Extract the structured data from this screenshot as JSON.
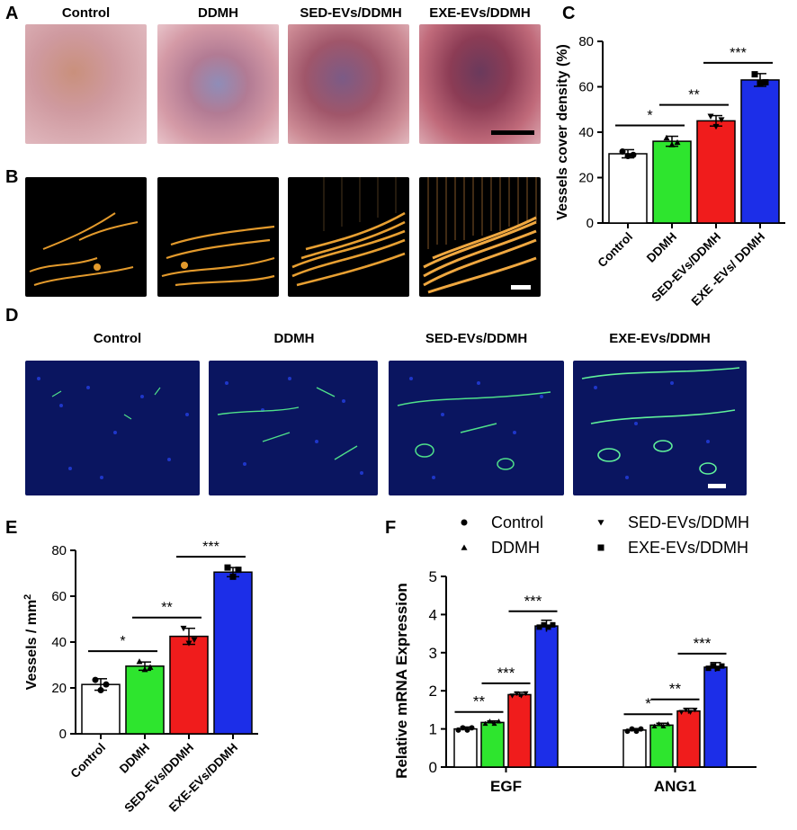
{
  "panels": {
    "A": "A",
    "B": "B",
    "C": "C",
    "D": "D",
    "E": "E",
    "F": "F"
  },
  "image_labels_top": [
    "Control",
    "DDMH",
    "SED-EVs/DDMH",
    "EXE-EVs/DDMH"
  ],
  "image_labels_d": [
    "Control",
    "DDMH",
    "SED-EVs/DDMH",
    "EXE-EVs/DDMH"
  ],
  "colors": {
    "control": "#ffffff",
    "ddmh": "#2ee52e",
    "sed": "#f01c1c",
    "exe": "#1c2ee8"
  },
  "chart_data": [
    {
      "id": "C",
      "type": "bar",
      "categories": [
        "Control",
        "DDMH",
        "SED-EVs/DDMH",
        "EXE -EVs/ DDMH"
      ],
      "values": [
        30.5,
        36,
        45,
        63
      ],
      "errors": [
        1.8,
        2.2,
        2.3,
        2.8
      ],
      "points": [
        [
          31.5,
          29.5,
          30
        ],
        [
          37.5,
          34.5,
          35.5
        ],
        [
          47,
          42.5,
          45.5
        ],
        [
          65.5,
          61.5,
          62
        ]
      ],
      "ylabel": "Vessels cover density (%)",
      "xlabel": "",
      "ylim": [
        0,
        80
      ],
      "yticks": [
        0,
        20,
        40,
        60,
        80
      ],
      "significance": [
        {
          "from": 0,
          "to": 1,
          "label": "*"
        },
        {
          "from": 1,
          "to": 2,
          "label": "**"
        },
        {
          "from": 2,
          "to": 3,
          "label": "***"
        }
      ]
    },
    {
      "id": "E",
      "type": "bar",
      "categories": [
        "Control",
        "DDMH",
        "SED-EVs/DDMH",
        "EXE-EVs/DDMH"
      ],
      "values": [
        21.5,
        29.5,
        42.5,
        70.5
      ],
      "errors": [
        2.5,
        1.8,
        3.5,
        2
      ],
      "points": [
        [
          23.5,
          19,
          21.5
        ],
        [
          31.5,
          28,
          29
        ],
        [
          46,
          39.5,
          41
        ],
        [
          72.5,
          68.5,
          71.5
        ]
      ],
      "ylabel": "Vessels / mm",
      "ylabel_sup": "2",
      "xlabel": "",
      "ylim": [
        0,
        80
      ],
      "yticks": [
        0,
        20,
        40,
        60,
        80
      ],
      "significance": [
        {
          "from": 0,
          "to": 1,
          "label": "*"
        },
        {
          "from": 1,
          "to": 2,
          "label": "**"
        },
        {
          "from": 2,
          "to": 3,
          "label": "***"
        }
      ]
    },
    {
      "id": "F",
      "type": "bar",
      "categories": [
        "EGF",
        "ANG1"
      ],
      "series": [
        {
          "name": "Control",
          "values": [
            1.0,
            0.97
          ],
          "errors": [
            0.05,
            0.04
          ],
          "marker": "circle"
        },
        {
          "name": "DDMH",
          "values": [
            1.17,
            1.1
          ],
          "errors": [
            0.04,
            0.05
          ],
          "marker": "triangle-up"
        },
        {
          "name": "SED-EVs/DDMH",
          "values": [
            1.9,
            1.47
          ],
          "errors": [
            0.06,
            0.07
          ],
          "marker": "triangle-down"
        },
        {
          "name": "EXE-EVs/DDMH",
          "values": [
            3.7,
            2.62
          ],
          "errors": [
            0.15,
            0.12
          ],
          "marker": "square"
        }
      ],
      "ylabel": "Relative mRNA Expression",
      "xlabel": "",
      "ylim": [
        0,
        5
      ],
      "yticks": [
        0,
        1,
        2,
        3,
        4,
        5
      ],
      "legend": "top",
      "significance": [
        {
          "group": 0,
          "from": 0,
          "to": 1,
          "label": "**"
        },
        {
          "group": 0,
          "from": 1,
          "to": 2,
          "label": "***"
        },
        {
          "group": 0,
          "from": 2,
          "to": 3,
          "label": "***"
        },
        {
          "group": 1,
          "from": 0,
          "to": 1,
          "label": "*"
        },
        {
          "group": 1,
          "from": 1,
          "to": 2,
          "label": "**"
        },
        {
          "group": 1,
          "from": 2,
          "to": 3,
          "label": "***"
        }
      ]
    }
  ]
}
